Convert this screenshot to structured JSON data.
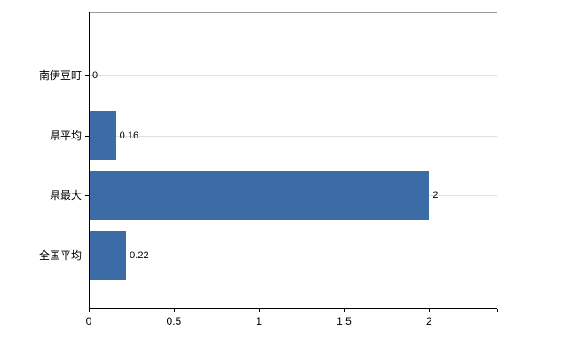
{
  "chart_data": {
    "type": "bar",
    "orientation": "horizontal",
    "title": "",
    "xlabel": "",
    "ylabel": "",
    "categories": [
      "南伊豆町",
      "県平均",
      "県最大",
      "全国平均"
    ],
    "values": [
      0,
      0.16,
      2,
      0.22
    ],
    "value_labels": [
      "0",
      "0.16",
      "2",
      "0.22"
    ],
    "x_ticks": [
      0,
      0.5,
      1,
      1.5,
      2
    ],
    "x_tick_labels": [
      "0",
      "0.5",
      "1",
      "1.5",
      "2"
    ],
    "xlim": [
      0,
      2.4
    ],
    "grid": "horizontal-row-center-lines",
    "legend": "none",
    "bar_color": "#3b6ca6",
    "axis_color": "#000000",
    "grid_color": "#e0e0e0",
    "border_color": "#9b9b9b",
    "background": "#ffffff"
  }
}
